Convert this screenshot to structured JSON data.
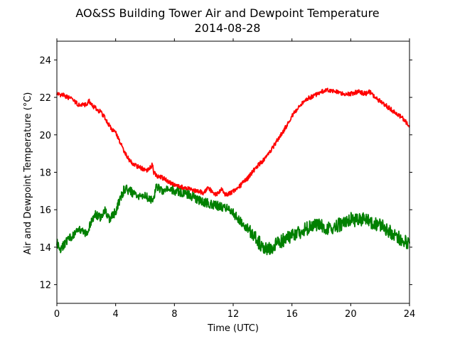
{
  "chart_data": {
    "type": "line",
    "title": "AO&SS Building Tower Air and Dewpoint Temperature",
    "subtitle": "2014-08-28",
    "xlabel": "Time (UTC)",
    "ylabel": "Air and Dewpoint Temperature (°C)",
    "xlim": [
      0,
      24
    ],
    "ylim": [
      11,
      25
    ],
    "xticks": [
      0,
      4,
      8,
      12,
      16,
      20,
      24
    ],
    "yticks": [
      12,
      14,
      16,
      18,
      20,
      22,
      24
    ],
    "grid": false,
    "legend": "none",
    "series": [
      {
        "color": "#ff0000",
        "x": [
          0,
          0.5,
          1,
          1.5,
          2,
          2.2,
          2.5,
          3,
          3.3,
          3.5,
          3.7,
          4,
          4.3,
          4.6,
          4.9,
          5.2,
          5.5,
          5.8,
          6.1,
          6.4,
          6.5,
          6.6,
          6.8,
          7.2,
          7.6,
          8,
          8.5,
          9,
          9.5,
          10,
          10.3,
          10.6,
          10.9,
          11.2,
          11.5,
          11.8,
          12,
          12.5,
          13,
          13.5,
          14,
          14.5,
          15,
          15.5,
          16,
          16.5,
          17,
          17.5,
          18,
          18.5,
          19,
          19.5,
          20,
          20.5,
          21,
          21.3,
          21.5,
          22,
          22.5,
          23,
          23.5,
          24
        ],
        "values": [
          22.2,
          22.1,
          21.9,
          21.6,
          21.6,
          21.8,
          21.5,
          21.2,
          20.9,
          20.6,
          20.3,
          20.1,
          19.6,
          19.1,
          18.7,
          18.4,
          18.3,
          18.2,
          18.1,
          18.3,
          18.4,
          18.0,
          17.8,
          17.7,
          17.5,
          17.3,
          17.2,
          17.1,
          17.0,
          16.9,
          17.2,
          16.9,
          16.8,
          17.1,
          16.8,
          16.9,
          17.0,
          17.3,
          17.7,
          18.2,
          18.6,
          19.1,
          19.7,
          20.3,
          21.0,
          21.5,
          21.9,
          22.1,
          22.3,
          22.4,
          22.3,
          22.2,
          22.2,
          22.3,
          22.2,
          22.3,
          22.1,
          21.8,
          21.5,
          21.2,
          20.9,
          20.5
        ]
      },
      {
        "color": "#008000",
        "x": [
          0,
          0.3,
          0.6,
          1,
          1.5,
          2,
          2.3,
          2.6,
          3,
          3.3,
          3.6,
          4,
          4.3,
          4.6,
          5,
          5.3,
          5.6,
          6,
          6.3,
          6.6,
          6.8,
          7,
          7.3,
          7.6,
          8,
          8.5,
          9,
          9.5,
          10,
          10.5,
          11,
          11.5,
          12,
          12.3,
          12.6,
          13,
          13.3,
          13.6,
          14,
          14.3,
          14.6,
          15,
          15.5,
          16,
          16.5,
          17,
          17.5,
          18,
          18.5,
          19,
          19.5,
          20,
          20.5,
          21,
          21.5,
          22,
          22.5,
          23,
          23.5,
          24
        ],
        "values": [
          14.2,
          13.9,
          14.3,
          14.6,
          14.9,
          14.7,
          15.2,
          15.8,
          15.6,
          16.0,
          15.5,
          15.9,
          16.6,
          17.1,
          17.0,
          16.8,
          16.7,
          16.7,
          16.6,
          16.6,
          17.3,
          17.0,
          17.1,
          17.2,
          17.0,
          16.9,
          16.8,
          16.6,
          16.4,
          16.3,
          16.2,
          16.1,
          15.8,
          15.6,
          15.3,
          15.0,
          14.8,
          14.4,
          14.0,
          13.9,
          14.0,
          14.2,
          14.4,
          14.6,
          14.8,
          15.0,
          15.2,
          15.2,
          15.0,
          15.1,
          15.3,
          15.5,
          15.4,
          15.6,
          15.3,
          15.2,
          14.9,
          14.6,
          14.4,
          14.2
        ]
      }
    ]
  }
}
